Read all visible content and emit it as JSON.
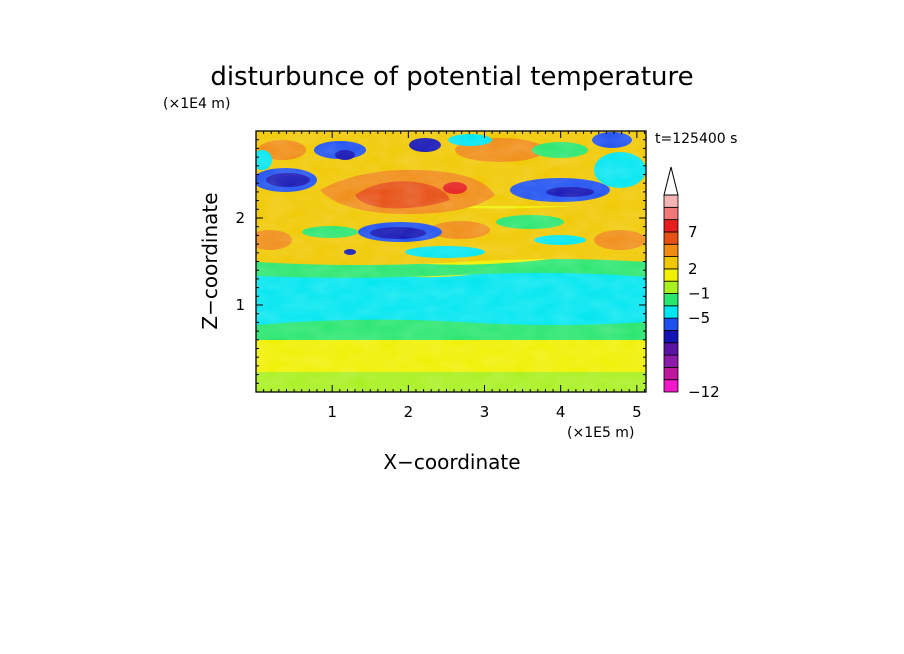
{
  "chart_data": {
    "type": "heatmap",
    "title": "disturbunce of potential temperature",
    "time_label": "t=125400 s",
    "xlabel": "X−coordinate",
    "ylabel": "Z−coordinate",
    "x_scale_label": "(×1E5 m)",
    "y_scale_label": "(×1E4 m)",
    "xlim": [
      0,
      5.12
    ],
    "ylim": [
      0,
      3.0
    ],
    "x_ticks": [
      {
        "value": 1,
        "label": "1"
      },
      {
        "value": 2,
        "label": "2"
      },
      {
        "value": 3,
        "label": "3"
      },
      {
        "value": 4,
        "label": "4"
      },
      {
        "value": 5,
        "label": "5"
      }
    ],
    "y_ticks": [
      {
        "value": 1,
        "label": "1"
      },
      {
        "value": 2,
        "label": "2"
      }
    ],
    "colorbar": {
      "colors": [
        "#f018c8",
        "#c0189c",
        "#8c1ca8",
        "#5a14a4",
        "#1414b4",
        "#1e50f0",
        "#00e6f0",
        "#28e66e",
        "#a8f01e",
        "#f0f000",
        "#f0c800",
        "#f08c14",
        "#e65014",
        "#e61e1e",
        "#f07878",
        "#f5b4b4"
      ],
      "tick_labels": [
        {
          "label": "−12",
          "at_boundary": 0
        },
        {
          "label": "−5",
          "at_boundary": 6
        },
        {
          "label": "−1",
          "at_boundary": 8
        },
        {
          "label": "2",
          "at_boundary": 10
        },
        {
          "label": "7",
          "at_boundary": 13
        }
      ],
      "overflow_arrow_color": "#ffffff"
    },
    "z_band_structure": [
      {
        "z_from": 0.0,
        "z_to": 0.15,
        "dominant": "yellow-green"
      },
      {
        "z_from": 0.15,
        "z_to": 0.6,
        "dominant": "yellow"
      },
      {
        "z_from": 0.6,
        "z_to": 0.8,
        "dominant": "green"
      },
      {
        "z_from": 0.8,
        "z_to": 1.35,
        "dominant": "cyan"
      },
      {
        "z_from": 1.35,
        "z_to": 1.5,
        "dominant": "green"
      },
      {
        "z_from": 1.5,
        "z_to": 2.05,
        "dominant": "yellow-orange with blue patches"
      },
      {
        "z_from": 2.05,
        "z_to": 2.5,
        "dominant": "orange-red with dark blue patches"
      },
      {
        "z_from": 2.5,
        "z_to": 3.0,
        "dominant": "mixed yellow, cyan, blue"
      }
    ]
  }
}
